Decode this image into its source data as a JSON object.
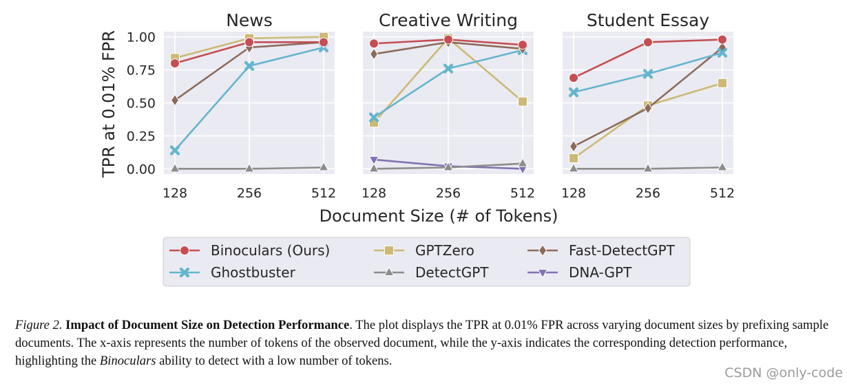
{
  "chart_data": {
    "type": "line",
    "ylabel": "TPR at 0.01% FPR",
    "xlabel": "Document Size (# of Tokens)",
    "x": [
      128,
      256,
      512
    ],
    "x_tick_labels": [
      "128",
      "256",
      "512"
    ],
    "y_ticks": [
      0.0,
      0.25,
      0.5,
      0.75,
      1.0
    ],
    "y_tick_labels": [
      "0.00",
      "0.25",
      "0.50",
      "0.75",
      "1.00"
    ],
    "ylim": [
      -0.04,
      1.04
    ],
    "grid": true,
    "legend_position": "bottom-center",
    "series_styles": [
      {
        "name": "Binoculars (Ours)",
        "color": "#c44e52",
        "marker": "circle"
      },
      {
        "name": "GPTZero",
        "color": "#ccb974",
        "marker": "square"
      },
      {
        "name": "Fast-DetectGPT",
        "color": "#8c6b5a",
        "marker": "diamond"
      },
      {
        "name": "Ghostbuster",
        "color": "#64b5cd",
        "marker": "x"
      },
      {
        "name": "DetectGPT",
        "color": "#8c8c8c",
        "marker": "triangle-up"
      },
      {
        "name": "DNA-GPT",
        "color": "#8172b2",
        "marker": "triangle-down"
      }
    ],
    "panels": [
      {
        "title": "News",
        "series": [
          {
            "name": "Ghostbuster",
            "values": [
              0.14,
              0.78,
              0.92
            ]
          },
          {
            "name": "DetectGPT",
            "values": [
              0.0,
              0.0,
              0.01
            ]
          },
          {
            "name": "Fast-DetectGPT",
            "values": [
              0.52,
              0.92,
              0.96
            ]
          },
          {
            "name": "GPTZero",
            "values": [
              0.84,
              0.99,
              1.0
            ]
          },
          {
            "name": "Binoculars (Ours)",
            "values": [
              0.8,
              0.96,
              0.96
            ]
          }
        ]
      },
      {
        "title": "Creative Writing",
        "series": [
          {
            "name": "DNA-GPT",
            "values": [
              0.07,
              0.02,
              0.0
            ]
          },
          {
            "name": "DetectGPT",
            "values": [
              0.0,
              0.01,
              0.04
            ]
          },
          {
            "name": "GPTZero",
            "values": [
              0.35,
              0.99,
              0.51
            ]
          },
          {
            "name": "Ghostbuster",
            "values": [
              0.39,
              0.76,
              0.9
            ]
          },
          {
            "name": "Fast-DetectGPT",
            "values": [
              0.87,
              0.96,
              0.91
            ]
          },
          {
            "name": "Binoculars (Ours)",
            "values": [
              0.95,
              0.98,
              0.94
            ]
          }
        ]
      },
      {
        "title": "Student Essay",
        "series": [
          {
            "name": "DetectGPT",
            "values": [
              0.0,
              0.0,
              0.01
            ]
          },
          {
            "name": "GPTZero",
            "values": [
              0.08,
              0.48,
              0.65
            ]
          },
          {
            "name": "Fast-DetectGPT",
            "values": [
              0.17,
              0.46,
              0.92
            ]
          },
          {
            "name": "Ghostbuster",
            "values": [
              0.58,
              0.72,
              0.88
            ]
          },
          {
            "name": "Binoculars (Ours)",
            "values": [
              0.69,
              0.96,
              0.98
            ]
          }
        ]
      }
    ],
    "legend": [
      [
        "Binoculars (Ours)",
        "GPTZero",
        "Fast-DetectGPT"
      ],
      [
        "Ghostbuster",
        "DetectGPT",
        "DNA-GPT"
      ]
    ]
  },
  "caption": {
    "label": "Figure 2.",
    "title": "Impact of Document Size on Detection Performance",
    "text_before_em": ". The plot displays the TPR at 0.01% FPR across varying document sizes by prefixing sample documents. The x-axis represents the number of tokens of the observed document, while the y-axis indicates the corresponding detection performance, highlighting the ",
    "em": "Binoculars",
    "text_after_em": " ability to detect with a low number of tokens."
  },
  "watermark": "CSDN @only-code"
}
